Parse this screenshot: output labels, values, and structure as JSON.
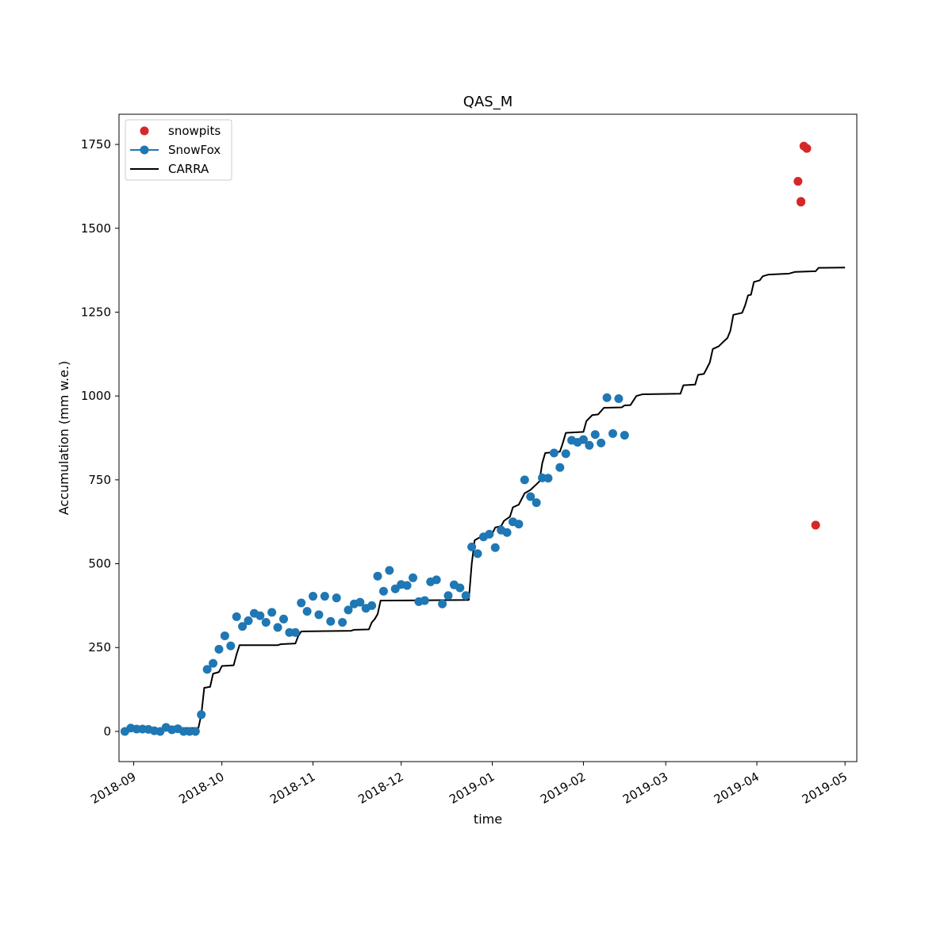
{
  "chart_data": {
    "type": "line",
    "title": "QAS_M",
    "xlabel": "time",
    "ylabel": "Accumulation (mm w.e.)",
    "xlim": [
      "2018-08-27",
      "2019-05-05"
    ],
    "ylim": [
      -90,
      1840
    ],
    "x_ticks": [
      "2018-09-01",
      "2018-10-01",
      "2018-11-01",
      "2018-12-01",
      "2019-01-01",
      "2019-02-01",
      "2019-03-01",
      "2019-04-01",
      "2019-05-01"
    ],
    "x_tick_labels": [
      "2018-09",
      "2018-10",
      "2018-11",
      "2018-12",
      "2019-01",
      "2019-02",
      "2019-03",
      "2019-04",
      "2019-05"
    ],
    "y_ticks": [
      0,
      250,
      500,
      750,
      1000,
      1250,
      1500,
      1750
    ],
    "y_tick_labels": [
      "0",
      "250",
      "500",
      "750",
      "1000",
      "1250",
      "1500",
      "1750"
    ],
    "grid": false,
    "legend_position": "top-left",
    "series": [
      {
        "name": "snowpits",
        "style": "markers",
        "color": "#d62728",
        "points": [
          [
            "2019-04-15",
            1640
          ],
          [
            "2019-04-16",
            1580
          ],
          [
            "2019-04-16",
            1578
          ],
          [
            "2019-04-17",
            1745
          ],
          [
            "2019-04-18",
            1738
          ],
          [
            "2019-04-21",
            615
          ]
        ]
      },
      {
        "name": "SnowFox",
        "style": "line-markers",
        "color": "#1f77b4",
        "points": [
          [
            "2018-08-29",
            0
          ],
          [
            "2018-08-31",
            10
          ],
          [
            "2018-09-02",
            7
          ],
          [
            "2018-09-04",
            7
          ],
          [
            "2018-09-06",
            6
          ],
          [
            "2018-09-08",
            2
          ],
          [
            "2018-09-10",
            0
          ],
          [
            "2018-09-12",
            12
          ],
          [
            "2018-09-14",
            5
          ],
          [
            "2018-09-16",
            8
          ],
          [
            "2018-09-18",
            0
          ],
          [
            "2018-09-20",
            0
          ],
          [
            "2018-09-22",
            0
          ],
          [
            "2018-09-24",
            50
          ],
          [
            "2018-09-26",
            185
          ],
          [
            "2018-09-28",
            203
          ],
          [
            "2018-09-30",
            245
          ],
          [
            "2018-10-02",
            285
          ],
          [
            "2018-10-04",
            255
          ],
          [
            "2018-10-06",
            342
          ],
          [
            "2018-10-08",
            313
          ],
          [
            "2018-10-10",
            330
          ],
          [
            "2018-10-12",
            352
          ],
          [
            "2018-10-14",
            345
          ],
          [
            "2018-10-16",
            325
          ],
          [
            "2018-10-18",
            355
          ],
          [
            "2018-10-20",
            310
          ],
          [
            "2018-10-22",
            335
          ],
          [
            "2018-10-24",
            295
          ],
          [
            "2018-10-26",
            295
          ],
          [
            "2018-10-28",
            383
          ],
          [
            "2018-10-30",
            358
          ],
          [
            "2018-11-01",
            403
          ],
          [
            "2018-11-03",
            348
          ],
          [
            "2018-11-05",
            403
          ],
          [
            "2018-11-07",
            328
          ],
          [
            "2018-11-09",
            398
          ],
          [
            "2018-11-11",
            325
          ],
          [
            "2018-11-13",
            362
          ],
          [
            "2018-11-15",
            380
          ],
          [
            "2018-11-17",
            385
          ],
          [
            "2018-11-19",
            367
          ],
          [
            "2018-11-21",
            375
          ],
          [
            "2018-11-23",
            463
          ],
          [
            "2018-11-25",
            418
          ],
          [
            "2018-11-27",
            480
          ],
          [
            "2018-11-29",
            425
          ],
          [
            "2018-12-01",
            438
          ],
          [
            "2018-12-03",
            435
          ],
          [
            "2018-12-05",
            458
          ],
          [
            "2018-12-07",
            387
          ],
          [
            "2018-12-09",
            390
          ],
          [
            "2018-12-11",
            446
          ],
          [
            "2018-12-13",
            452
          ],
          [
            "2018-12-15",
            380
          ],
          [
            "2018-12-17",
            405
          ],
          [
            "2018-12-19",
            437
          ],
          [
            "2018-12-21",
            428
          ],
          [
            "2018-12-23",
            405
          ],
          [
            "2018-12-25",
            550
          ],
          [
            "2018-12-27",
            530
          ],
          [
            "2018-12-29",
            580
          ],
          [
            "2018-12-31",
            588
          ],
          [
            "2019-01-02",
            548
          ],
          [
            "2019-01-04",
            600
          ],
          [
            "2019-01-06",
            593
          ],
          [
            "2019-01-08",
            625
          ],
          [
            "2019-01-10",
            618
          ],
          [
            "2019-01-12",
            750
          ],
          [
            "2019-01-14",
            700
          ],
          [
            "2019-01-16",
            682
          ],
          [
            "2019-01-18",
            756
          ],
          [
            "2019-01-20",
            755
          ],
          [
            "2019-01-22",
            830
          ],
          [
            "2019-01-24",
            787
          ],
          [
            "2019-01-26",
            828
          ],
          [
            "2019-01-28",
            868
          ],
          [
            "2019-01-30",
            862
          ],
          [
            "2019-02-01",
            870
          ],
          [
            "2019-02-03",
            853
          ],
          [
            "2019-02-05",
            885
          ],
          [
            "2019-02-07",
            860
          ],
          [
            "2019-02-09",
            995
          ],
          [
            "2019-02-11",
            888
          ],
          [
            "2019-02-13",
            992
          ],
          [
            "2019-02-15",
            883
          ]
        ]
      },
      {
        "name": "CARRA",
        "style": "line",
        "color": "#000000",
        "points": [
          [
            "2018-08-29",
            2
          ],
          [
            "2018-09-15",
            3
          ],
          [
            "2018-09-17",
            10
          ],
          [
            "2018-09-23",
            10
          ],
          [
            "2018-09-24",
            50
          ],
          [
            "2018-09-25",
            130
          ],
          [
            "2018-09-27",
            133
          ],
          [
            "2018-09-28",
            172
          ],
          [
            "2018-09-30",
            177
          ],
          [
            "2018-10-01",
            195
          ],
          [
            "2018-10-05",
            197
          ],
          [
            "2018-10-06",
            230
          ],
          [
            "2018-10-07",
            257
          ],
          [
            "2018-10-20",
            257
          ],
          [
            "2018-10-21",
            260
          ],
          [
            "2018-10-26",
            262
          ],
          [
            "2018-10-27",
            285
          ],
          [
            "2018-10-28",
            298
          ],
          [
            "2018-11-14",
            300
          ],
          [
            "2018-11-15",
            303
          ],
          [
            "2018-11-20",
            304
          ],
          [
            "2018-11-21",
            325
          ],
          [
            "2018-11-22",
            335
          ],
          [
            "2018-11-23",
            350
          ],
          [
            "2018-11-24",
            390
          ],
          [
            "2018-12-24",
            392
          ],
          [
            "2018-12-25",
            500
          ],
          [
            "2018-12-26",
            570
          ],
          [
            "2018-12-28",
            580
          ],
          [
            "2019-01-01",
            590
          ],
          [
            "2019-01-02",
            608
          ],
          [
            "2019-01-04",
            612
          ],
          [
            "2019-01-05",
            628
          ],
          [
            "2019-01-07",
            640
          ],
          [
            "2019-01-08",
            668
          ],
          [
            "2019-01-10",
            676
          ],
          [
            "2019-01-12",
            710
          ],
          [
            "2019-01-14",
            720
          ],
          [
            "2019-01-17",
            745
          ],
          [
            "2019-01-18",
            800
          ],
          [
            "2019-01-19",
            830
          ],
          [
            "2019-01-24",
            834
          ],
          [
            "2019-01-25",
            860
          ],
          [
            "2019-01-26",
            890
          ],
          [
            "2019-02-01",
            893
          ],
          [
            "2019-02-02",
            925
          ],
          [
            "2019-02-04",
            943
          ],
          [
            "2019-02-06",
            945
          ],
          [
            "2019-02-08",
            965
          ],
          [
            "2019-02-14",
            966
          ],
          [
            "2019-02-15",
            972
          ],
          [
            "2019-02-17",
            973
          ],
          [
            "2019-02-19",
            1000
          ],
          [
            "2019-02-21",
            1005
          ],
          [
            "2019-03-06",
            1007
          ],
          [
            "2019-03-07",
            1032
          ],
          [
            "2019-03-11",
            1034
          ],
          [
            "2019-03-12",
            1063
          ],
          [
            "2019-03-14",
            1066
          ],
          [
            "2019-03-16",
            1100
          ],
          [
            "2019-03-17",
            1140
          ],
          [
            "2019-03-19",
            1148
          ],
          [
            "2019-03-21",
            1165
          ],
          [
            "2019-03-22",
            1173
          ],
          [
            "2019-03-23",
            1195
          ],
          [
            "2019-03-24",
            1242
          ],
          [
            "2019-03-27",
            1248
          ],
          [
            "2019-03-28",
            1270
          ],
          [
            "2019-03-29",
            1300
          ],
          [
            "2019-03-30",
            1302
          ],
          [
            "2019-03-31",
            1340
          ],
          [
            "2019-04-02",
            1345
          ],
          [
            "2019-04-03",
            1357
          ],
          [
            "2019-04-05",
            1362
          ],
          [
            "2019-04-12",
            1365
          ],
          [
            "2019-04-14",
            1370
          ],
          [
            "2019-04-21",
            1372
          ],
          [
            "2019-04-22",
            1382
          ],
          [
            "2019-05-01",
            1383
          ]
        ]
      }
    ]
  }
}
